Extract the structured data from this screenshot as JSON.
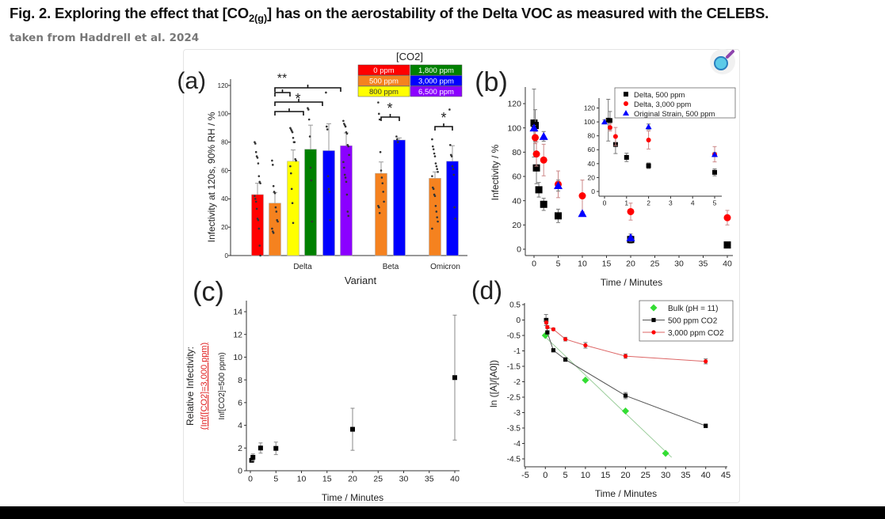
{
  "header": {
    "title_pre": "Fig. 2. Exploring the effect that [CO",
    "title_sub": "2(g)",
    "title_post": "] has on the aerostability of the Delta VOC as measured with the CELEBS.",
    "subtitle": "taken from Haddrell et al. 2024"
  },
  "icons": {
    "zoom": "magnifier-icon"
  },
  "chart_data": [
    {
      "panel": "(a)",
      "type": "bar",
      "ylabel": "Infectivity at 120s, 90% RH / %",
      "xlabel": "Variant",
      "ylim": [
        0,
        120
      ],
      "yticks": [
        0,
        20,
        40,
        60,
        80,
        100,
        120
      ],
      "groups": [
        "Delta",
        "Beta",
        "Omicron"
      ],
      "legend_title": "[CO2]",
      "legend": [
        {
          "label": "0 ppm",
          "color": "#ff0000"
        },
        {
          "label": "1,800 ppm",
          "color": "#008000"
        },
        {
          "label": "500 ppm",
          "color": "#f5821f"
        },
        {
          "label": "3,000 ppm",
          "color": "#0000ff"
        },
        {
          "label": "800 ppm",
          "color": "#ffff00"
        },
        {
          "label": "6,500 ppm",
          "color": "#8b00ff"
        }
      ],
      "bars": [
        {
          "group": "Delta",
          "co2": "0 ppm",
          "color": "#ff0000",
          "value": 43,
          "err_top": 51,
          "points": [
            80,
            79,
            73,
            70,
            69,
            65,
            56,
            52,
            51,
            42,
            40,
            38,
            33,
            26,
            25,
            19,
            7,
            0
          ]
        },
        {
          "group": "Delta",
          "co2": "500 ppm",
          "color": "#f5821f",
          "value": 37,
          "err_top": 44.5,
          "points": [
            67,
            64,
            49,
            45,
            44,
            34,
            31,
            25,
            24,
            19,
            17,
            16
          ]
        },
        {
          "group": "Delta",
          "co2": "800 ppm",
          "color": "#ffff00",
          "value": 66.5,
          "err_top": 74.5,
          "points": [
            90,
            89,
            88,
            87,
            83,
            80,
            80,
            68,
            67,
            63,
            58,
            47,
            37,
            23
          ]
        },
        {
          "group": "Delta",
          "co2": "1,800 ppm",
          "color": "#008000",
          "value": 75,
          "err_top": 92,
          "points": [
            104,
            103,
            96,
            84,
            62,
            53,
            24
          ]
        },
        {
          "group": "Delta",
          "co2": "3,000 ppm",
          "color": "#0000ff",
          "value": 74,
          "err_top": 93,
          "points": [
            115,
            91,
            89,
            56,
            47,
            45,
            25
          ]
        },
        {
          "group": "Delta",
          "co2": "6,500 ppm",
          "color": "#8b00ff",
          "value": 77.5,
          "err_top": 86.5,
          "points": [
            95,
            93,
            92,
            91,
            87,
            86,
            78,
            77,
            71,
            66,
            62,
            57,
            55,
            52,
            43,
            31,
            28
          ]
        },
        {
          "group": "Beta",
          "co2": "500 ppm",
          "color": "#f5821f",
          "value": 58,
          "err_top": 66,
          "points": [
            108,
            100,
            96,
            73,
            60,
            55,
            51,
            45,
            38,
            35,
            34,
            30
          ]
        },
        {
          "group": "Beta",
          "co2": "3,000 ppm",
          "color": "#0000ff",
          "value": 81.5,
          "err_top": 83,
          "points": [
            84,
            82,
            80
          ]
        },
        {
          "group": "Omicron",
          "co2": "500 ppm",
          "color": "#f5821f",
          "value": 54.5,
          "err_top": 59,
          "points": [
            82,
            77,
            75,
            72,
            70,
            65,
            63,
            61,
            59,
            56,
            48,
            47,
            43,
            42,
            35,
            31,
            27,
            24,
            19
          ]
        },
        {
          "group": "Omicron",
          "co2": "3,000 ppm",
          "color": "#0000ff",
          "value": 66.5,
          "err_top": 77.5,
          "points": [
            103,
            78,
            71,
            70,
            63,
            61,
            57,
            34,
            26
          ]
        }
      ],
      "significance": [
        "**",
        "*",
        "*",
        "*"
      ]
    },
    {
      "panel": "(b)",
      "type": "scatter",
      "xlabel": "Time / Minutes",
      "ylabel": "Infectivity / %",
      "xlim": [
        -2,
        42
      ],
      "ylim": [
        -5,
        135
      ],
      "xticks": [
        0,
        5,
        10,
        15,
        20,
        25,
        30,
        35,
        40
      ],
      "yticks": [
        0,
        20,
        40,
        60,
        80,
        100,
        120
      ],
      "series": [
        {
          "name": "Delta, 500 ppm",
          "color": "#000000",
          "marker": "square",
          "points": [
            [
              0,
              104,
              28
            ],
            [
              0.25,
              102,
              13
            ],
            [
              0.5,
              67,
              13
            ],
            [
              1,
              49,
              6
            ],
            [
              2,
              37,
              5
            ],
            [
              5,
              27.5,
              5.5
            ],
            [
              20,
              8,
              3
            ],
            [
              40,
              3.5,
              1
            ]
          ]
        },
        {
          "name": "Delta, 3,000 ppm",
          "color": "#ff0000",
          "marker": "circle",
          "points": [
            [
              0.25,
              92,
              5
            ],
            [
              0.5,
              78.5,
              10
            ],
            [
              2,
              73.5,
              13
            ],
            [
              5,
              53.5,
              11
            ],
            [
              10,
              44,
              13
            ],
            [
              20,
              31,
              7
            ],
            [
              40,
              26,
              6
            ]
          ]
        },
        {
          "name": "Original Strain, 500 ppm",
          "color": "#0000ff",
          "marker": "triangle",
          "points": [
            [
              0,
              100,
              2
            ],
            [
              2,
              93,
              4
            ],
            [
              5,
              52.5,
              4.5
            ],
            [
              10,
              29.5,
              1
            ],
            [
              20,
              9.5,
              3
            ]
          ]
        }
      ],
      "legend_placement": "top-right",
      "inset": {
        "xlim": [
          -0.3,
          5.3
        ],
        "ylim": [
          -5,
          135
        ],
        "xticks": [
          0,
          1,
          2,
          3,
          4,
          5
        ],
        "yticks": [
          0,
          20,
          40,
          60,
          80,
          100,
          120
        ],
        "series": [
          {
            "name": "Delta, 500 ppm",
            "points": [
              [
                0.17,
                102.5,
                30
              ],
              [
                0.25,
                102,
                13
              ],
              [
                0.5,
                67.5,
                13
              ],
              [
                1,
                49,
                6
              ],
              [
                2,
                37,
                4
              ],
              [
                5,
                27.5,
                5
              ]
            ]
          },
          {
            "name": "Delta, 3,000 ppm",
            "points": [
              [
                0.25,
                92,
                5
              ],
              [
                0.5,
                79,
                13
              ],
              [
                2,
                74,
                13
              ],
              [
                5,
                53.5,
                11
              ]
            ]
          },
          {
            "name": "Original Strain, 500 ppm",
            "points": [
              [
                0,
                100,
                3
              ],
              [
                2,
                93,
                4
              ],
              [
                5,
                53,
                3
              ]
            ]
          }
        ]
      }
    },
    {
      "panel": "(c)",
      "type": "scatter",
      "xlabel": "Time / Minutes",
      "ylabel_line1": "Relative Infectivity:",
      "ylabel_line2": "(Inf([CO2]=3,000 ppm)",
      "ylabel_line3": "Inf[CO2]=500 ppm)",
      "xlim": [
        -1,
        41.5
      ],
      "ylim": [
        0,
        15
      ],
      "xticks": [
        0,
        5,
        10,
        15,
        20,
        25,
        30,
        35,
        40
      ],
      "yticks": [
        0,
        2,
        4,
        6,
        8,
        10,
        12,
        14
      ],
      "series": [
        {
          "color": "#000000",
          "marker": "square",
          "points": [
            [
              0.25,
              0.92,
              0.15
            ],
            [
              0.5,
              1.18,
              0.3
            ],
            [
              2,
              2.0,
              0.45
            ],
            [
              5,
              1.97,
              0.55
            ],
            [
              20,
              3.65,
              1.85
            ],
            [
              40,
              8.2,
              5.5
            ]
          ]
        }
      ]
    },
    {
      "panel": "(d)",
      "type": "line",
      "xlabel": "Time / Minutes",
      "ylabel": "ln ([A]/[A0])",
      "xlim": [
        -5,
        45
      ],
      "ylim": [
        -4.75,
        0.6
      ],
      "xticks": [
        -5,
        0,
        5,
        10,
        15,
        20,
        25,
        30,
        35,
        40,
        45
      ],
      "yticks": [
        0.5,
        0,
        -0.5,
        -1,
        -1.5,
        -2,
        -2.5,
        -3,
        -3.5,
        -4,
        -4.5
      ],
      "series": [
        {
          "name": "Bulk (pH = 11)",
          "color": "#33dd33",
          "marker": "diamond",
          "fit": [
            [
              0,
              -0.55
            ],
            [
              31.5,
              -4.45
            ]
          ],
          "points": [
            [
              0,
              -0.5,
              0
            ],
            [
              10,
              -1.95,
              0
            ],
            [
              20,
              -2.95,
              0
            ],
            [
              30,
              -4.32,
              0
            ]
          ]
        },
        {
          "name": "500 ppm CO2",
          "color": "#000000",
          "marker": "square",
          "connect": true,
          "points": [
            [
              0.17,
              0.0,
              0.18
            ],
            [
              0.25,
              0.0,
              0.05
            ],
            [
              0.5,
              -0.4,
              0.05
            ],
            [
              2,
              -0.98,
              0.04
            ],
            [
              5,
              -1.28,
              0.06
            ],
            [
              20,
              -2.45,
              0.1
            ],
            [
              40,
              -3.43,
              0.06
            ]
          ]
        },
        {
          "name": "3,000 ppm CO2",
          "color": "#ff0000",
          "marker": "circle",
          "connect": true,
          "points": [
            [
              0.25,
              -0.08,
              0.05
            ],
            [
              0.5,
              -0.23,
              0.05
            ],
            [
              2,
              -0.3,
              0.04
            ],
            [
              5,
              -0.62,
              0.06
            ],
            [
              10,
              -0.82,
              0.09
            ],
            [
              20,
              -1.17,
              0.07
            ],
            [
              40,
              -1.34,
              0.08
            ]
          ]
        }
      ],
      "legend_placement": "top-right"
    }
  ]
}
